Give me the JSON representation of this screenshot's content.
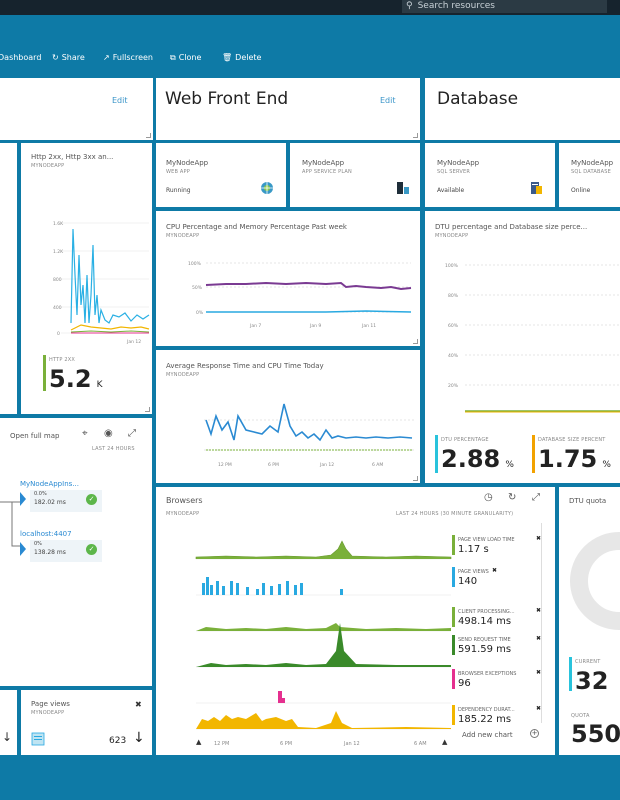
{
  "top_bar": {
    "search_placeholder": "Search resources"
  },
  "toolbar": {
    "dashboard_label": "Dashboard",
    "share_label": "Share",
    "fullscreen_label": "Fullscreen",
    "clone_label": "Clone",
    "delete_label": "Delete"
  },
  "tiles": {
    "edit_label": "Edit",
    "web_front_end": {
      "title": "Web Front End"
    },
    "database": {
      "title": "Database"
    },
    "http_chart": {
      "title": "Http 2xx, Http 3xx an...",
      "subtitle": "MYNODEAPP",
      "y_ticks": [
        "1.6K",
        "1.2K",
        "800",
        "400",
        "0"
      ],
      "x_tick": "Jan 12",
      "kpi_label": "HTTP 2XX",
      "kpi_value": "5.2",
      "kpi_unit": "K"
    },
    "webapp": {
      "name": "MyNodeApp",
      "type": "WEB APP",
      "status": "Running"
    },
    "service_plan": {
      "name": "MyNodeApp",
      "type": "APP SERVICE PLAN"
    },
    "sql_server": {
      "name": "MyNodeApp",
      "type": "SQL SERVER",
      "status": "Available"
    },
    "sql_database": {
      "name": "MyNodeApp",
      "type": "SQL DATABASE",
      "status": "Online"
    },
    "cpu_memory": {
      "title": "CPU Percentage and Memory Percentage Past week",
      "subtitle": "MYNODEAPP",
      "y_ticks": [
        "100%",
        "50%",
        "0%"
      ],
      "x_ticks": [
        "Jan 7",
        "Jan 9",
        "Jan 11"
      ]
    },
    "response_time": {
      "title": "Average Response Time and CPU Time Today",
      "subtitle": "MYNODEAPP",
      "x_ticks": [
        "12 PM",
        "6 PM",
        "Jan 12",
        "6 AM"
      ]
    },
    "dtu": {
      "title": "DTU percentage and Database size perce...",
      "subtitle": "MYNODEAPP",
      "y_ticks": [
        "100%",
        "80%",
        "60%",
        "40%",
        "20%",
        "0%"
      ],
      "kpi1_label": "DTU PERCENTAGE",
      "kpi1_value": "2.88",
      "kpi1_unit": "%",
      "kpi2_label": "DATABASE SIZE PERCENT",
      "kpi2_value": "1.75",
      "kpi2_unit": "%"
    },
    "app_map": {
      "open_label": "Open full map",
      "time_label": "LAST 24 HOURS",
      "node1_name": "MyNodeAppIns...",
      "node1_pct": "0.0%",
      "node1_time": "182.02 ms",
      "node2_name": "localhost:4407",
      "node2_pct": "0%",
      "node2_time": "138.28 ms"
    },
    "browsers": {
      "title": "Browsers",
      "subtitle": "MYNODEAPP",
      "time_label": "LAST 24 HOURS (30 MINUTE GRANULARITY)",
      "x_ticks": [
        "12 PM",
        "6 PM",
        "Jan 12",
        "6 AM"
      ],
      "add_chart_label": "Add new chart",
      "metrics": [
        {
          "name": "PAGE VIEW LOAD TIME",
          "value": "1.17 s",
          "color": "#7ab03a"
        },
        {
          "name": "PAGE VIEWS",
          "value": "140",
          "color": "#29a9e1"
        },
        {
          "name": "CLIENT PROCESSING...",
          "value": "498.14 ms",
          "color": "#7ab03a"
        },
        {
          "name": "SEND REQUEST TIME",
          "value": "591.59 ms",
          "color": "#3a8a2a"
        },
        {
          "name": "BROWSER EXCEPTIONS",
          "value": "96",
          "color": "#e5308f"
        },
        {
          "name": "DEPENDENCY DURAT...",
          "value": "185.22 ms",
          "color": "#f2b600"
        }
      ]
    },
    "dtu_quota": {
      "title": "DTU quota",
      "current_label": "CURRENT",
      "current_value": "32",
      "quota_label": "QUOTA",
      "quota_value": "550"
    },
    "page_views": {
      "title": "Page views",
      "subtitle": "MYNODEAPP",
      "value": "623"
    }
  }
}
